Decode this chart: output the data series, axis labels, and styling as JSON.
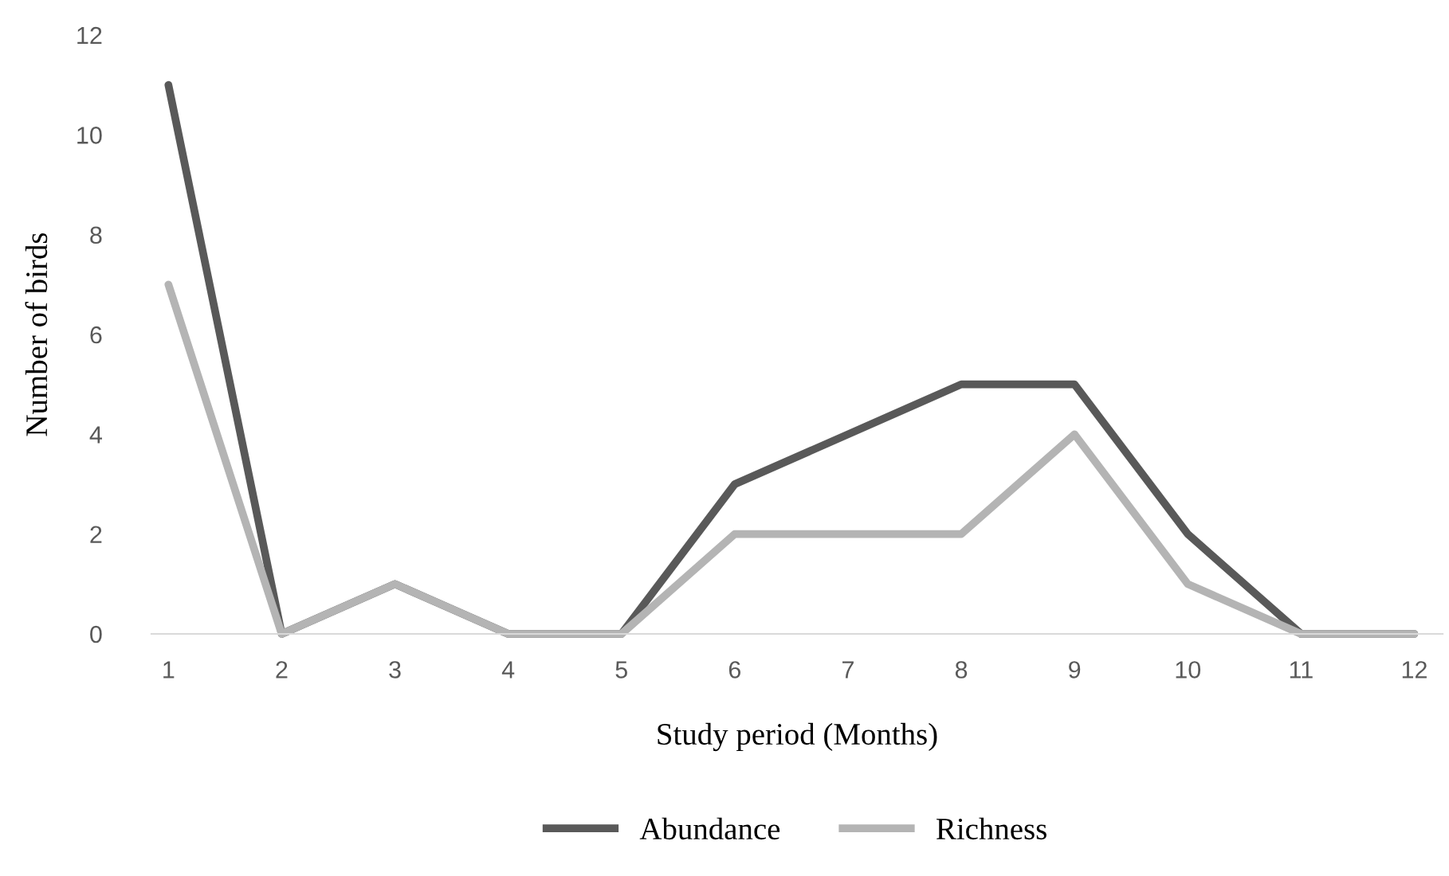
{
  "chart_data": {
    "type": "line",
    "xlabel": "Study period (Months)",
    "ylabel": "Number of birds",
    "categories": [
      "1",
      "2",
      "3",
      "4",
      "5",
      "6",
      "7",
      "8",
      "9",
      "10",
      "11",
      "12"
    ],
    "series": [
      {
        "name": "Abundance",
        "color": "#595959",
        "values": [
          11,
          0,
          1,
          0,
          0,
          3,
          4,
          5,
          5,
          2,
          0,
          0
        ]
      },
      {
        "name": "Richness",
        "color": "#b4b4b4",
        "values": [
          7,
          0,
          1,
          0,
          0,
          2,
          2,
          2,
          4,
          1,
          0,
          0
        ]
      }
    ],
    "ylim": [
      0,
      12
    ],
    "yticks": [
      0,
      2,
      4,
      6,
      8,
      10,
      12
    ],
    "grid": false,
    "legend": "bottom",
    "marker": "none",
    "line_style": "solid"
  }
}
